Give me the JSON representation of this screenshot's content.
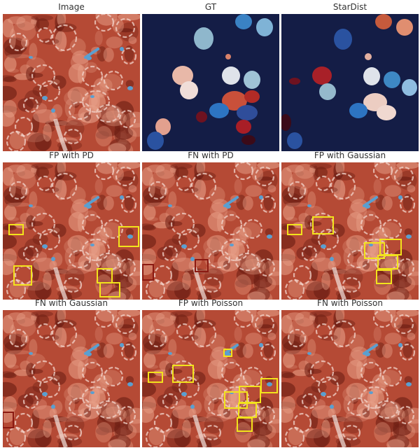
{
  "panels": {
    "image": {
      "title": "Image"
    },
    "gt": {
      "title": "GT"
    },
    "stardist": {
      "title": "StarDist"
    },
    "fp_pd": {
      "title": "FP with PD"
    },
    "fn_pd": {
      "title": "FN with PD"
    },
    "fp_gaussian": {
      "title": "FP with Gaussian"
    },
    "fn_gaussian": {
      "title": "FN with Gaussian"
    },
    "fp_poisson": {
      "title": "FP with Poisson"
    },
    "fn_poisson": {
      "title": "FN with Poisson"
    }
  },
  "colors": {
    "tissue_base": "#b54a35",
    "tissue_dark": "#6e1f14",
    "tissue_light": "#e8a088",
    "nucleus_blue": "#5a9fd0",
    "mask_background": "#141d46",
    "fp_box": "#f2e31c",
    "fn_box": "#8b1a12"
  },
  "box_types": {
    "fp": "false-positive-box",
    "fn": "false-negative-box"
  }
}
